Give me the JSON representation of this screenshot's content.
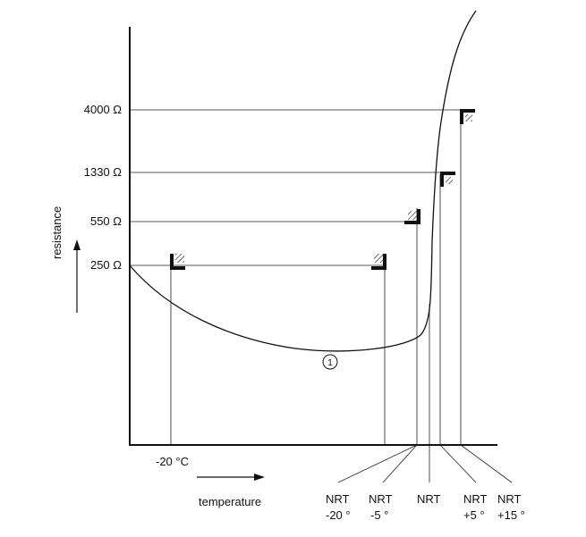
{
  "axes": {
    "y_label": "resistance",
    "x_label": "temperature"
  },
  "resistance_levels": [
    {
      "label": "4000 Ω"
    },
    {
      "label": "1330 Ω"
    },
    {
      "label": "550 Ω"
    },
    {
      "label": "250 Ω"
    }
  ],
  "temperature_mark": {
    "label": "-20 °C"
  },
  "curve_label": "①",
  "nrt_labels": [
    {
      "line1": "NRT",
      "line2": "-20 °"
    },
    {
      "line1": "NRT",
      "line2": "-5 °"
    },
    {
      "line1": "NRT",
      "line2": ""
    },
    {
      "line1": "NRT",
      "line2": "+5 °"
    },
    {
      "line1": "NRT",
      "line2": "+15 °"
    }
  ]
}
